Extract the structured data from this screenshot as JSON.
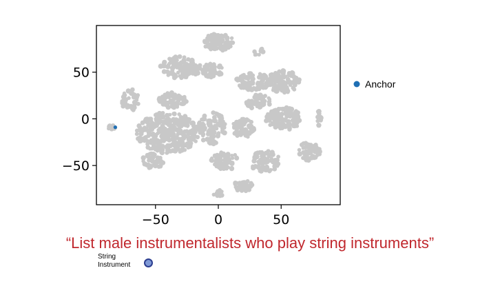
{
  "chart_data": {
    "type": "scatter",
    "title": "",
    "xlabel": "",
    "ylabel": "",
    "xlim": [
      -97,
      97
    ],
    "ylim": [
      -92,
      100
    ],
    "xticks": [
      -50,
      0,
      50
    ],
    "yticks": [
      50,
      0,
      -50
    ],
    "grid": false,
    "legend_position": "right",
    "background_color": "#c8c8c8",
    "anchor_color": "#1f6fb4",
    "clusters": [
      {
        "cx": 0,
        "cy": 82,
        "rx": 13,
        "ry": 9,
        "n": 90
      },
      {
        "cx": 32,
        "cy": 72,
        "rx": 4,
        "ry": 5,
        "n": 8
      },
      {
        "cx": -30,
        "cy": 55,
        "rx": 16,
        "ry": 12,
        "n": 120
      },
      {
        "cx": -5,
        "cy": 52,
        "rx": 9,
        "ry": 8,
        "n": 50
      },
      {
        "cx": -37,
        "cy": 20,
        "rx": 12,
        "ry": 8,
        "n": 60
      },
      {
        "cx": -70,
        "cy": 20,
        "rx": 7,
        "ry": 12,
        "n": 45
      },
      {
        "cx": -40,
        "cy": -15,
        "rx": 25,
        "ry": 22,
        "n": 320
      },
      {
        "cx": -5,
        "cy": -10,
        "rx": 11,
        "ry": 17,
        "n": 90
      },
      {
        "cx": -52,
        "cy": -45,
        "rx": 9,
        "ry": 8,
        "n": 40
      },
      {
        "cx": 28,
        "cy": 40,
        "rx": 14,
        "ry": 9,
        "n": 90
      },
      {
        "cx": 52,
        "cy": 40,
        "rx": 13,
        "ry": 12,
        "n": 95
      },
      {
        "cx": 32,
        "cy": 18,
        "rx": 10,
        "ry": 8,
        "n": 50
      },
      {
        "cx": 52,
        "cy": 0,
        "rx": 14,
        "ry": 12,
        "n": 110
      },
      {
        "cx": 20,
        "cy": -10,
        "rx": 9,
        "ry": 10,
        "n": 55
      },
      {
        "cx": 5,
        "cy": -45,
        "rx": 11,
        "ry": 10,
        "n": 70
      },
      {
        "cx": 37,
        "cy": -45,
        "rx": 12,
        "ry": 12,
        "n": 80
      },
      {
        "cx": 72,
        "cy": -35,
        "rx": 9,
        "ry": 10,
        "n": 55
      },
      {
        "cx": 20,
        "cy": -72,
        "rx": 8,
        "ry": 6,
        "n": 35
      },
      {
        "cx": 0,
        "cy": -80,
        "rx": 4,
        "ry": 4,
        "n": 12
      },
      {
        "cx": 80,
        "cy": 0,
        "rx": 3,
        "ry": 8,
        "n": 10
      },
      {
        "cx": -85,
        "cy": -10,
        "rx": 3,
        "ry": 3,
        "n": 10
      }
    ],
    "anchor_point": {
      "x": -82,
      "y": -9
    },
    "legend": [
      {
        "label": "Anchor",
        "color": "#1f6fb4"
      }
    ]
  },
  "caption": "“List male instrumentalists who play string instruments”",
  "item": {
    "label_line1": "String",
    "label_line2": "Instrument",
    "fill_color": "#7f99d6",
    "border_color": "#2b3d8f"
  }
}
